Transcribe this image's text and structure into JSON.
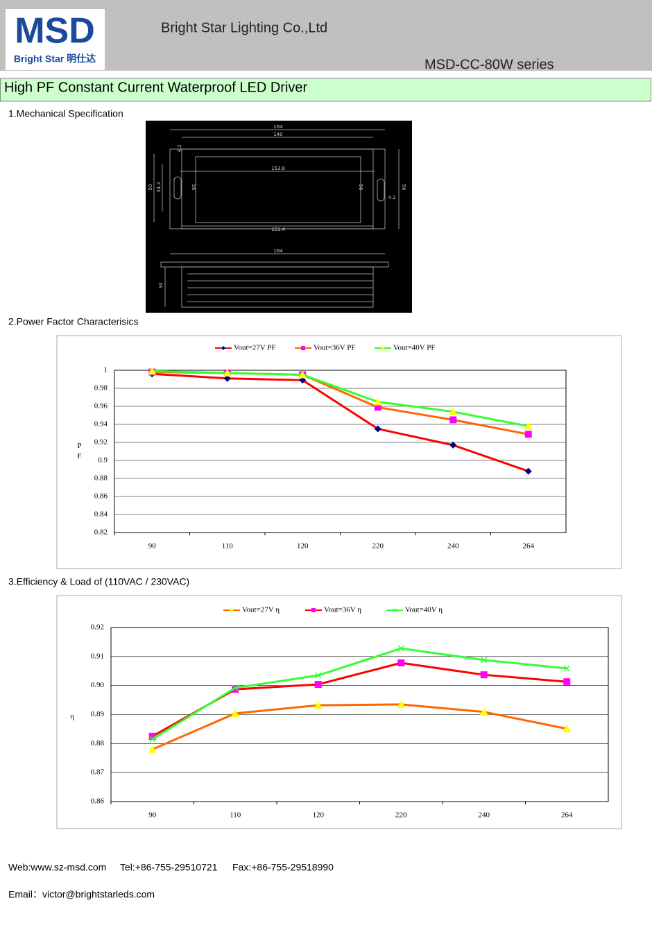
{
  "header": {
    "logo_mark": "MSD",
    "logo_text": "Bright Star 明仕达",
    "company": "Bright Star Lighting Co.,Ltd",
    "series": "MSD-CC-80W series"
  },
  "title": "High PF Constant Current Waterproof LED Driver",
  "sections": [
    "1.Mechanical Specification",
    "2.Power Factor Characterisics",
    "3.Efficiency & Load of (110VAC / 230VAC)"
  ],
  "drawing": {
    "labels": [
      "164",
      "140",
      "153.8",
      "151.4",
      "4.2",
      "50",
      "34.2",
      "56",
      "56",
      "56",
      "4.2",
      "164",
      "34"
    ]
  },
  "chart_data": [
    {
      "type": "line",
      "y_label": "PF",
      "categories": [
        "90",
        "110",
        "120",
        "220",
        "240",
        "264"
      ],
      "ylim": [
        0.82,
        1
      ],
      "yticks": [
        0.82,
        0.84,
        0.86,
        0.88,
        0.9,
        0.92,
        0.94,
        0.96,
        0.98,
        1
      ],
      "grid": true,
      "legend": "top",
      "series": [
        {
          "name": "Vout=27V PF",
          "color": "#ff0000",
          "marker": "diamond",
          "marker_color": "#000080",
          "values": [
            0.996,
            0.991,
            0.989,
            0.935,
            0.917,
            0.888
          ]
        },
        {
          "name": "Vout=36V PF",
          "color": "#ff6600",
          "marker": "square",
          "marker_color": "#ff00ff",
          "values": [
            0.998,
            0.997,
            0.995,
            0.959,
            0.945,
            0.929
          ]
        },
        {
          "name": "Vout=40V PF",
          "color": "#33ff33",
          "marker": "triangle",
          "marker_color": "#ffff00",
          "values": [
            0.999,
            0.997,
            0.995,
            0.965,
            0.954,
            0.938
          ]
        }
      ]
    },
    {
      "type": "line",
      "y_label": "η",
      "categories": [
        "90",
        "110",
        "120",
        "220",
        "240",
        "264"
      ],
      "ylim": [
        0.86,
        0.92
      ],
      "yticks": [
        0.86,
        0.87,
        0.88,
        0.89,
        {
          "value": 0.9,
          "label": "0.90"
        },
        0.91,
        0.92
      ],
      "grid": true,
      "legend": "top",
      "series": [
        {
          "name": "Vout=27V η",
          "color": "#ff6600",
          "marker": "triangle",
          "marker_color": "#ffff00",
          "values": [
            0.878,
            0.8904,
            0.8932,
            0.8935,
            0.8909,
            0.8851
          ]
        },
        {
          "name": "Vout=36V η",
          "color": "#ff0000",
          "marker": "square",
          "marker_color": "#ff00ff",
          "values": [
            0.8825,
            0.8987,
            0.9004,
            0.9078,
            0.9037,
            0.9013
          ]
        },
        {
          "name": "Vout=40V η",
          "color": "#33ff33",
          "marker": "x",
          "marker_color": "#33ff33",
          "values": [
            0.8815,
            0.8992,
            0.9035,
            0.9128,
            0.9088,
            0.9059
          ]
        }
      ]
    }
  ],
  "footer": {
    "web": "Web:www.sz-msd.com",
    "tel": "Tel:+86-755-29510721",
    "fax": "Fax:+86-755-29518990",
    "email": "Email：victor@brightstarleds.com"
  }
}
